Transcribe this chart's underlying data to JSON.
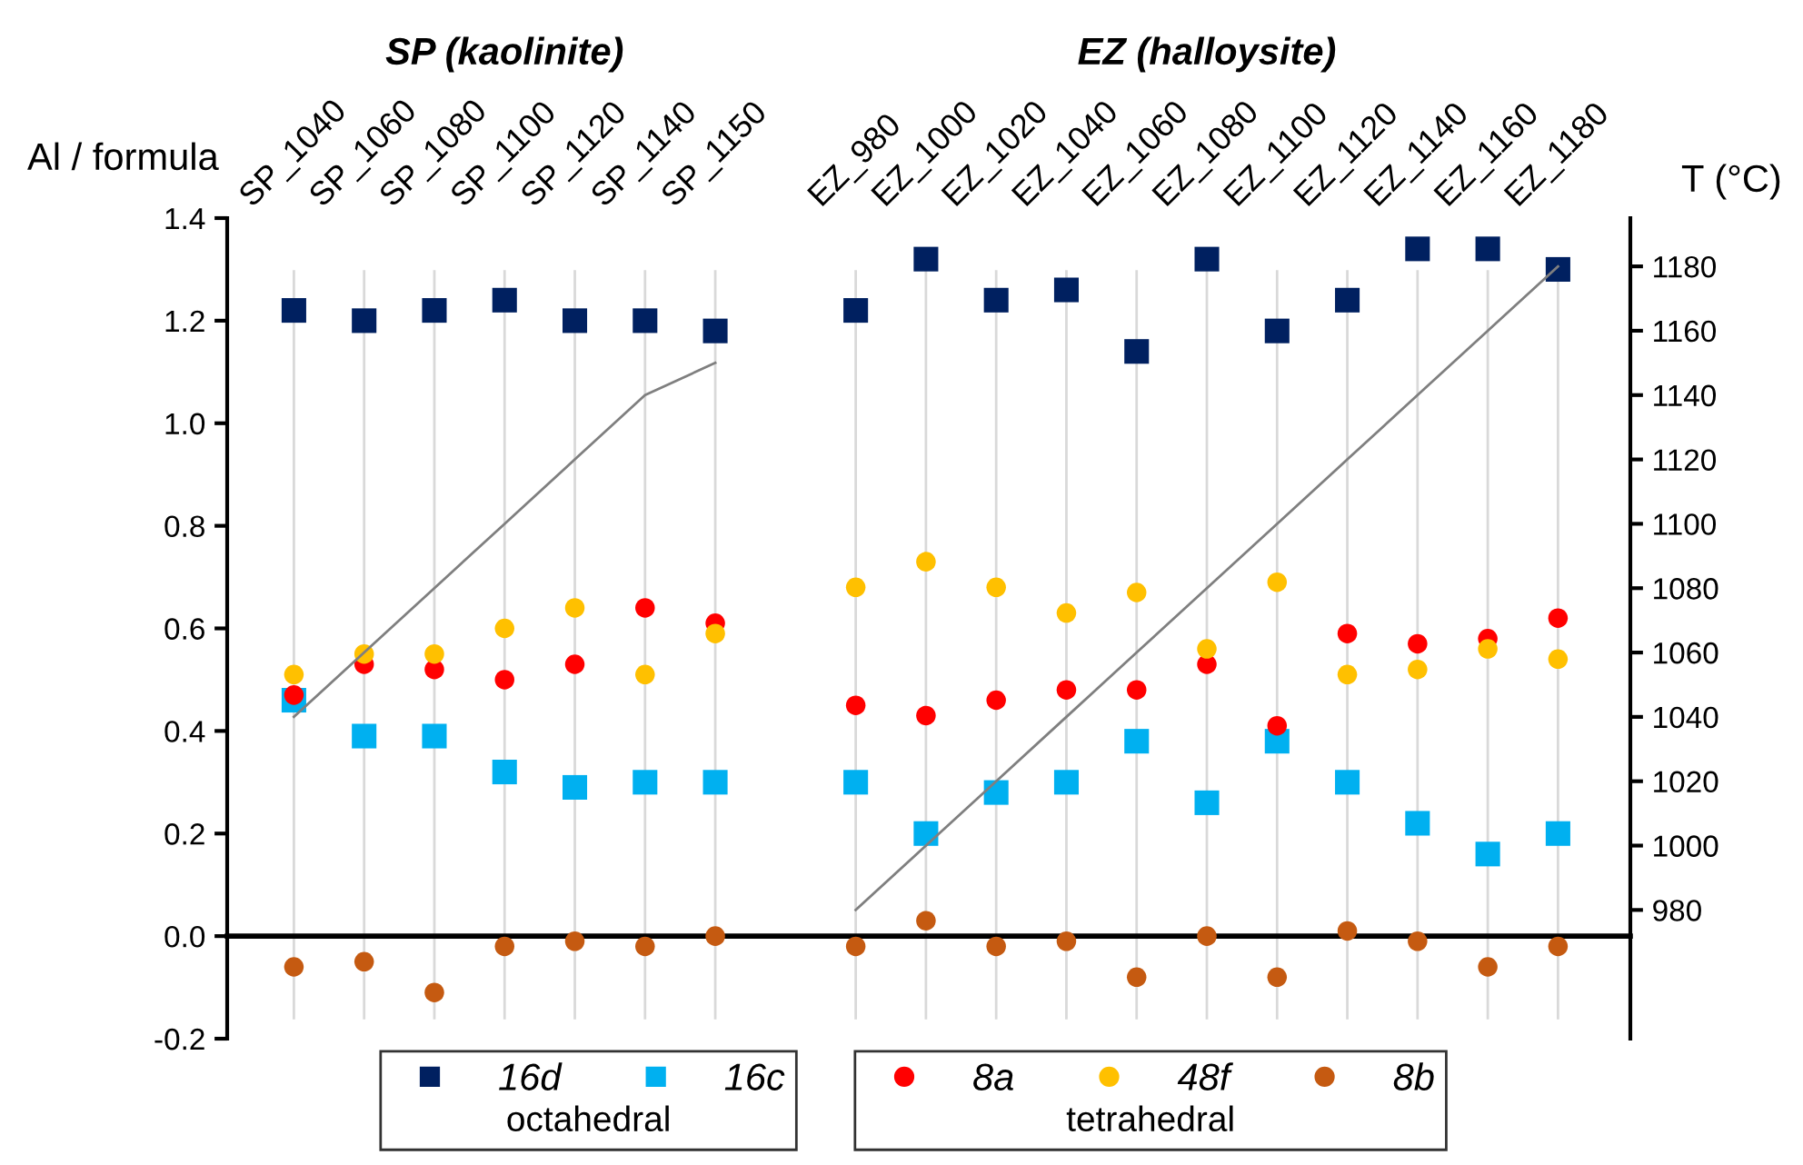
{
  "chart_data": {
    "type": "scatter",
    "categories": [
      "SP_1040",
      "SP_1060",
      "SP_1080",
      "SP_1100",
      "SP_1120",
      "SP_1140",
      "SP_1150",
      null,
      "EZ_980",
      "EZ_1000",
      "EZ_1020",
      "EZ_1040",
      "EZ_1060",
      "EZ_1080",
      "EZ_1100",
      "EZ_1120",
      "EZ_1140",
      "EZ_1160",
      "EZ_1180"
    ],
    "series": [
      {
        "name": "16d",
        "color": "#002060",
        "marker": "square",
        "values": [
          1.22,
          1.2,
          1.22,
          1.24,
          1.2,
          1.2,
          1.18,
          null,
          1.22,
          1.32,
          1.24,
          1.26,
          1.14,
          1.32,
          1.18,
          1.24,
          1.34,
          1.34,
          1.3
        ]
      },
      {
        "name": "16c",
        "color": "#00b0f0",
        "marker": "square",
        "values": [
          0.46,
          0.39,
          0.39,
          0.32,
          0.29,
          0.3,
          0.3,
          null,
          0.3,
          0.2,
          0.28,
          0.3,
          0.38,
          0.26,
          0.38,
          0.3,
          0.22,
          0.16,
          0.2
        ]
      },
      {
        "name": "8a",
        "color": "#ff0000",
        "marker": "circle",
        "values": [
          0.47,
          0.53,
          0.52,
          0.5,
          0.53,
          0.64,
          0.61,
          null,
          0.45,
          0.43,
          0.46,
          0.48,
          0.48,
          0.53,
          0.41,
          0.59,
          0.57,
          0.58,
          0.62
        ]
      },
      {
        "name": "48f",
        "color": "#ffc000",
        "marker": "circle",
        "values": [
          0.51,
          0.55,
          0.55,
          0.6,
          0.64,
          0.51,
          0.59,
          null,
          0.68,
          0.73,
          0.68,
          0.63,
          0.67,
          0.56,
          0.69,
          0.51,
          0.52,
          0.56,
          0.54
        ]
      },
      {
        "name": "8b",
        "color": "#c55a11",
        "marker": "circle",
        "values": [
          -0.06,
          -0.05,
          -0.11,
          -0.02,
          -0.01,
          -0.02,
          0.0,
          null,
          -0.02,
          0.03,
          -0.02,
          -0.01,
          -0.08,
          0.0,
          -0.08,
          0.01,
          -0.01,
          -0.06,
          -0.02
        ]
      },
      {
        "type": "line",
        "axis": "y2",
        "color": "#7f7f7f",
        "marker": "none",
        "values": [
          1040,
          1060,
          1080,
          1100,
          1120,
          1140,
          1150,
          null,
          980,
          1000,
          1020,
          1040,
          1060,
          1080,
          1100,
          1120,
          1140,
          1160,
          1180
        ]
      }
    ],
    "ylabel": "Al / formula",
    "y2label": "T (°C)",
    "ylim": [
      -0.2,
      1.4
    ],
    "yticks": [
      {
        "value": -0.2,
        "label": "-0.2"
      },
      {
        "value": 0.0,
        "label": "0.0"
      },
      {
        "value": 0.2,
        "label": "0.2"
      },
      {
        "value": 0.4,
        "label": "0.4"
      },
      {
        "value": 0.6,
        "label": "0.6"
      },
      {
        "value": 0.8,
        "label": "0.8"
      },
      {
        "value": 1.0,
        "label": "1.0"
      },
      {
        "value": 1.2,
        "label": "1.2"
      },
      {
        "value": 1.4,
        "label": "1.4"
      }
    ],
    "y2lim": [
      940,
      1195
    ],
    "y2ticks": [
      980,
      1000,
      1020,
      1040,
      1060,
      1080,
      1100,
      1120,
      1140,
      1160,
      1180
    ],
    "grid": "x",
    "legend": "bottom",
    "annotations": [
      "SP (kaolinite)",
      "EZ (halloysite)",
      "octahedral",
      "tetrahedral"
    ]
  }
}
